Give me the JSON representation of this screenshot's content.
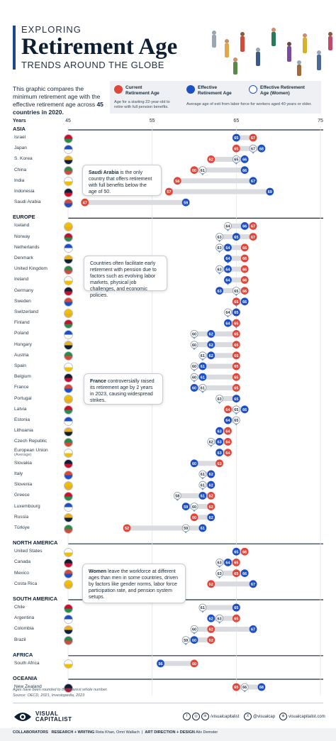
{
  "header": {
    "kicker": "EXPLORING",
    "title": "Retirement Age",
    "subtitle": "TRENDS AROUND THE GLOBE"
  },
  "intro": {
    "pre": "This graphic compares the minimum retirement age with the effective retirement age across ",
    "bold": "45 countries in 2020."
  },
  "legend": {
    "current": {
      "line1": "Current",
      "line2": "Retirement Age",
      "note1": "Age for a starting 22-year-old to",
      "note2": "retire with full pension benefits."
    },
    "effective": {
      "line1": "Effective",
      "line2": "Retirement Age"
    },
    "effective_women": {
      "line1": "Effective Retirement",
      "line2": "Age (Women)"
    },
    "effective_note": "Average age of exit from labor force for workers aged 40 years or older."
  },
  "colors": {
    "current": "#e0473b",
    "effective": "#1d4fc4",
    "women": "#ffffff",
    "women_marker": "#6a9be0",
    "bar": "#d9dbde",
    "text": "#1a2a3a",
    "divider": "#1a2a3a"
  },
  "chart_data": {
    "type": "dumbbell",
    "x_axis_label": "Years",
    "xlim": [
      45,
      75
    ],
    "ticks": [
      45,
      55,
      65,
      75
    ],
    "groups": [
      {
        "region": "ASIA",
        "countries": [
          {
            "name": "Israel",
            "current": 67,
            "effective": 65,
            "women": null
          },
          {
            "name": "Japan",
            "current": 65,
            "effective": 68,
            "women": 67
          },
          {
            "name": "S. Korea",
            "current": 62,
            "effective": 66,
            "women": 65
          },
          {
            "name": "China",
            "current": 60,
            "effective": 66,
            "women": 61
          },
          {
            "name": "India",
            "current": 58,
            "effective": 67,
            "women": null
          },
          {
            "name": "Indonesia",
            "current": 57,
            "effective": 69,
            "women": null
          },
          {
            "name": "Saudi Arabia",
            "current": 47,
            "effective": 59,
            "women": null
          }
        ]
      },
      {
        "region": "EUROPE",
        "countries": [
          {
            "name": "Iceland",
            "current": 67,
            "effective": 66,
            "women": 64
          },
          {
            "name": "Norway",
            "current": 67,
            "effective": 65,
            "women": 63
          },
          {
            "name": "Netherlands",
            "current": 66,
            "effective": 64,
            "women": 63
          },
          {
            "name": "Denmark",
            "current": 66,
            "effective": 64,
            "women": 64
          },
          {
            "name": "United Kingdom",
            "current": 66,
            "effective": 64,
            "women": 63
          },
          {
            "name": "Ireland",
            "current": 66,
            "effective": 64,
            "women": 64
          },
          {
            "name": "Germany",
            "current": 66,
            "effective": 63,
            "women": 65
          },
          {
            "name": "Sweden",
            "current": 65,
            "effective": 66,
            "women": 65
          },
          {
            "name": "Switzerland",
            "current": 65,
            "effective": 65,
            "women": 64
          },
          {
            "name": "Finland",
            "current": 65,
            "effective": 64,
            "women": 65
          },
          {
            "name": "Poland",
            "current": 65,
            "effective": 62,
            "women": 60
          },
          {
            "name": "Hungary",
            "current": 65,
            "effective": 62,
            "women": 60
          },
          {
            "name": "Austria",
            "current": 65,
            "effective": 62,
            "women": 61
          },
          {
            "name": "Spain",
            "current": 65,
            "effective": 61,
            "women": 60
          },
          {
            "name": "Belgium",
            "current": 65,
            "effective": 61,
            "women": 60
          },
          {
            "name": "France",
            "current": 65,
            "effective": 60,
            "women": 61
          },
          {
            "name": "Portugal",
            "current": 65,
            "effective": 65,
            "women": 63
          },
          {
            "name": "Latvia",
            "current": 64,
            "effective": 66,
            "women": 65
          },
          {
            "name": "Estonia",
            "current": 64,
            "effective": 64,
            "women": 65
          },
          {
            "name": "Lithuania",
            "current": 64,
            "effective": 63,
            "women": null
          },
          {
            "name": "Czech Republic",
            "current": 64,
            "effective": 63,
            "women": 62
          },
          {
            "name": "European Union",
            "sub": "(Average)",
            "current": 64,
            "effective": 63,
            "women": null
          },
          {
            "name": "Slovakia",
            "current": 63,
            "effective": 60,
            "women": null
          },
          {
            "name": "Italy",
            "current": 62,
            "effective": 62,
            "women": 61
          },
          {
            "name": "Slovenia",
            "current": 62,
            "effective": 62,
            "women": 61
          },
          {
            "name": "Greece",
            "current": 62,
            "effective": 61,
            "women": 58
          },
          {
            "name": "Luxembourg",
            "current": 62,
            "effective": 59,
            "women": 60
          },
          {
            "name": "Russia",
            "current": 60,
            "effective": 62,
            "women": null
          },
          {
            "name": "Türkiye",
            "current": 52,
            "effective": 61,
            "women": 59
          }
        ]
      },
      {
        "region": "NORTH AMERICA",
        "countries": [
          {
            "name": "United States",
            "current": 66,
            "effective": 65,
            "women": null
          },
          {
            "name": "Canada",
            "current": 65,
            "effective": 64,
            "women": 63
          },
          {
            "name": "Mexico",
            "current": 65,
            "effective": 66,
            "women": 63
          },
          {
            "name": "Costa Rica",
            "current": 62,
            "effective": 67,
            "women": null
          }
        ]
      },
      {
        "region": "SOUTH AMERICA",
        "countries": [
          {
            "name": "Chile",
            "current": 65,
            "effective": 65,
            "women": 61
          },
          {
            "name": "Argentina",
            "current": 65,
            "effective": 62,
            "women": 63
          },
          {
            "name": "Colombia",
            "current": 62,
            "effective": 67,
            "women": 60
          },
          {
            "name": "Brazil",
            "current": 62,
            "effective": 60,
            "women": 59
          }
        ]
      },
      {
        "region": "AFRICA",
        "countries": [
          {
            "name": "South Africa",
            "current": 60,
            "effective": 56,
            "women": null
          }
        ]
      },
      {
        "region": "OCEANIA",
        "countries": [
          {
            "name": "New Zealand",
            "current": 65,
            "effective": 68,
            "women": 66
          }
        ]
      }
    ]
  },
  "annotations": {
    "saudi": {
      "bold": "Saudi Arabia",
      "text": " is the only country that offers retirement with full benefits below the age of 50."
    },
    "europe": {
      "bold": "",
      "text": "Countries often facilitate early retirement with pension due to factors such as evolving labor markets, physical job challenges, and economic policies."
    },
    "france": {
      "bold": "France",
      "text": " controversially raised its retirement age by 2 years in 2023, causing widespread strikes."
    },
    "women": {
      "bold": "Women",
      "text": " leave the workforce at different ages than men in some countries, driven by factors like gender norms, labor force participation rate, and pension system setups."
    }
  },
  "footnote": {
    "line1": "Ages have been rounded to the nearest whole number.",
    "line2": "Source: OECD, 2021, Investopedia, 2023"
  },
  "footer": {
    "brand1": "VISUAL",
    "brand2": "CAPITALIST",
    "social1": "/visualcapitalist",
    "social2": "@visualcap",
    "social3": "visualcapitalist.com",
    "collaborators_label": "COLLABORATORS",
    "research_label": "RESEARCH + WRITING",
    "research_names": "Reta Khan, Omri Wallach",
    "art_label": "ART DIRECTION + DESIGN",
    "art_names": "Alix Demster"
  }
}
